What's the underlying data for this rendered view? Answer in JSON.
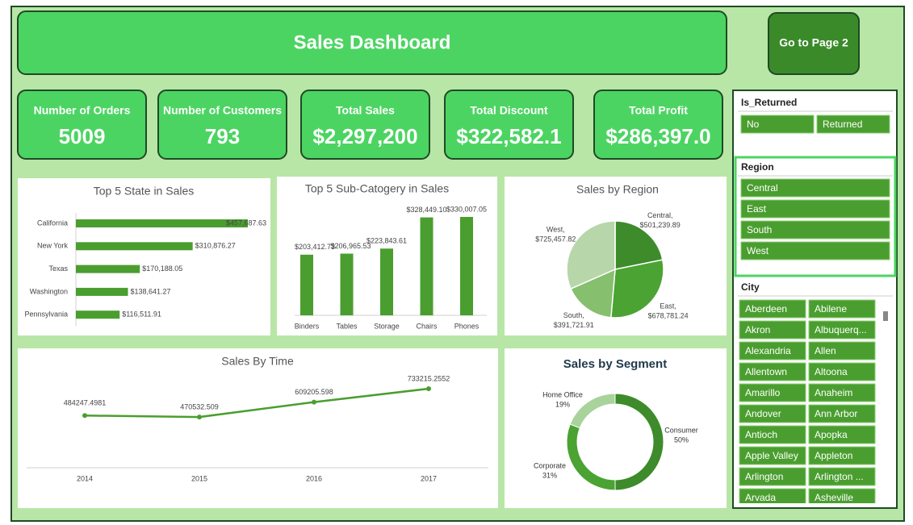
{
  "header": {
    "title": "Sales Dashboard",
    "button": "Go to Page 2"
  },
  "kpis": [
    {
      "label": "Number of Orders",
      "value": "5009"
    },
    {
      "label": "Number of Customers",
      "value": "793"
    },
    {
      "label": "Total Sales",
      "value": "$2,297,200"
    },
    {
      "label": "Total Discount",
      "value": "$322,582.1"
    },
    {
      "label": "Total Profit",
      "value": "$286,397.0"
    }
  ],
  "chart_data": [
    {
      "type": "hbar",
      "title": "Top 5 State in Sales",
      "color": "#4a9e2f",
      "categories": [
        "California",
        "New York",
        "Texas",
        "Washington",
        "Pennsylvania"
      ],
      "values": [
        457687.63,
        310876.27,
        170188.05,
        138641.27,
        116511.91
      ],
      "value_labels": [
        "$457,687.63",
        "$310,876.27",
        "$170,188.05",
        "$138,641.27",
        "$116,511.91"
      ]
    },
    {
      "type": "bar",
      "title": "Top 5 Sub-Catogery in Sales",
      "color": "#4a9e2f",
      "categories": [
        "Binders",
        "Tables",
        "Storage",
        "Chairs",
        "Phones"
      ],
      "values": [
        203412.73,
        206965.53,
        223843.61,
        328449.1,
        330007.05
      ],
      "value_labels": [
        "$203,412.73",
        "$206,965.53",
        "$223,843.61",
        "$328,449.10",
        "$330,007.05"
      ]
    },
    {
      "type": "pie",
      "title": "Sales by Region",
      "categories": [
        "Central,",
        "East,",
        "South,",
        "West,"
      ],
      "values": [
        501239.89,
        678781.24,
        391721.91,
        725457.82
      ],
      "value_labels": [
        "$501,239.89",
        "$678,781.24",
        "$391,721.91",
        "$725,457.82"
      ],
      "colors": [
        "#3d8b2a",
        "#4aa332",
        "#86bf6e",
        "#b7d6aa"
      ]
    },
    {
      "type": "line",
      "title": "Sales By Time",
      "color": "#4a9e2f",
      "categories": [
        "2014",
        "2015",
        "2016",
        "2017"
      ],
      "values": [
        484247.4981,
        470532.509,
        609205.598,
        733215.2552
      ]
    },
    {
      "type": "donut",
      "title": "Sales by Segment",
      "categories": [
        "Consumer",
        "Corporate",
        "Home Office"
      ],
      "values": [
        50,
        31,
        19
      ],
      "value_labels": [
        "50%",
        "31%",
        "19%"
      ],
      "colors": [
        "#3d8b2a",
        "#4aa332",
        "#a9d39b"
      ]
    }
  ],
  "slicers": [
    {
      "title": "Is_Returned",
      "items": [
        "No",
        "Returned"
      ]
    },
    {
      "title": "Region",
      "items": [
        "Central",
        "East",
        "South",
        "West"
      ]
    },
    {
      "title": "City",
      "items": [
        "Aberdeen",
        "Abilene",
        "Akron",
        "Albuquerq...",
        "Alexandria",
        "Allen",
        "Allentown",
        "Altoona",
        "Amarillo",
        "Anaheim",
        "Andover",
        "Ann Arbor",
        "Antioch",
        "Apopka",
        "Apple Valley",
        "Appleton",
        "Arlington",
        "Arlington ...",
        "Arvada",
        "Asheville"
      ]
    }
  ]
}
